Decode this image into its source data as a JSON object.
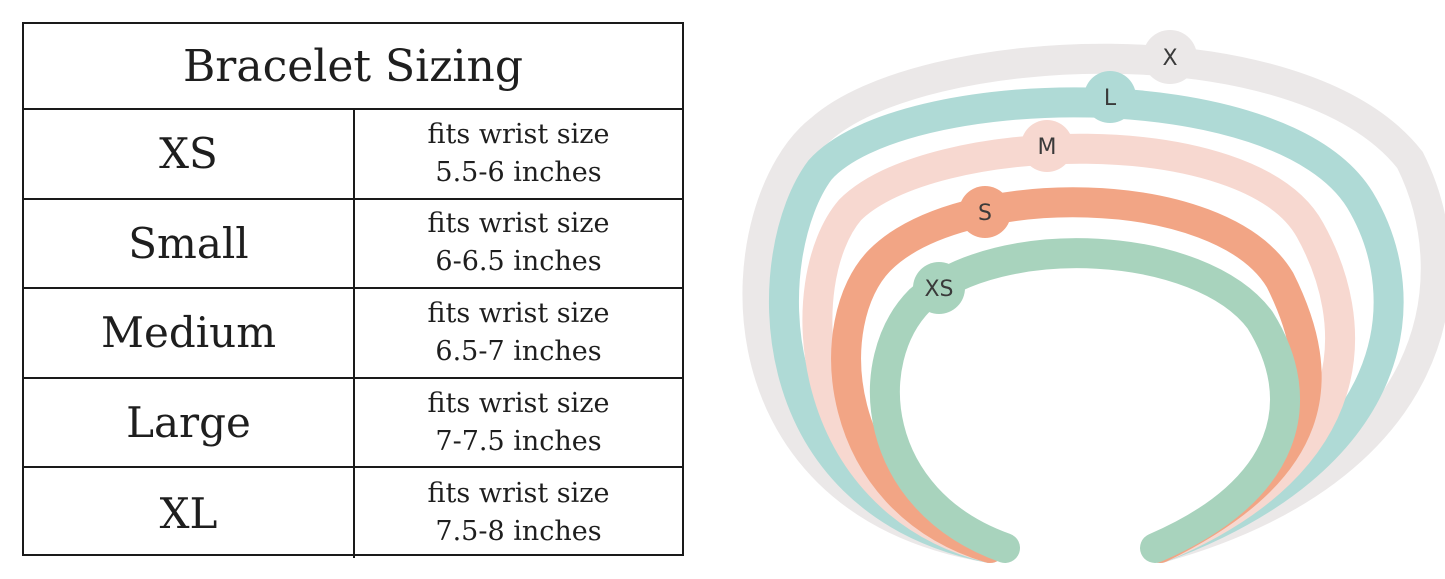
{
  "table": {
    "title": "Bracelet Sizing",
    "rows": [
      {
        "size": "XS",
        "line1": "fits wrist size",
        "line2": "5.5-6 inches"
      },
      {
        "size": "Small",
        "line1": "fits wrist size",
        "line2": "6-6.5 inches"
      },
      {
        "size": "Medium",
        "line1": "fits wrist size",
        "line2": "6.5-7 inches"
      },
      {
        "size": "Large",
        "line1": "fits wrist size",
        "line2": "7-7.5 inches"
      },
      {
        "size": "XL",
        "line1": "fits wrist size",
        "line2": "7.5-8 inches"
      }
    ]
  },
  "diagram": {
    "bands": [
      {
        "label": "X",
        "color": "#ebe8e8"
      },
      {
        "label": "L",
        "color": "#afdad6"
      },
      {
        "label": "M",
        "color": "#f7d8d0"
      },
      {
        "label": "S",
        "color": "#f2a585"
      },
      {
        "label": "XS",
        "color": "#a8d3bd"
      }
    ]
  }
}
